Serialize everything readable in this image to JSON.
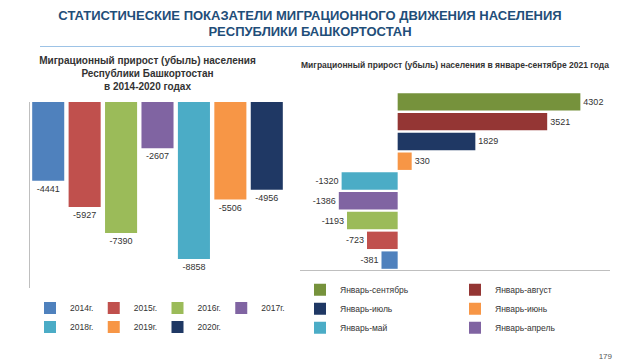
{
  "header": {
    "title": "СТАТИСТИЧЕСКИЕ ПОКАЗАТЕЛИ МИГРАЦИОННОГО ДВИЖЕНИЯ НАСЕЛЕНИЯ\nРЕСПУБЛИКИ БАШКОРТОСТАН",
    "page_number": 179
  },
  "chart_data": [
    {
      "type": "bar",
      "title": "Миграционный прирост (убыль) населения\nРеспублики Башкортостан\nв 2014-2020 годах",
      "categories": [
        "2014г.",
        "2015г.",
        "2016г.",
        "2017г.",
        "2018г.",
        "2019г.",
        "2020г."
      ],
      "values": [
        -4441,
        -5927,
        -7390,
        -2607,
        -8858,
        -5506,
        -4956
      ],
      "colors": [
        "#4f81bd",
        "#c0504d",
        "#9bbb59",
        "#8064a2",
        "#4bacc6",
        "#f79646",
        "#1f3864"
      ],
      "ylim": [
        -10500,
        0
      ],
      "grid": false,
      "legend": "bottom",
      "data_labels": true,
      "tick_labels": false
    },
    {
      "type": "bar",
      "title": "Миграционный прирост (убыль) населения в январе-сентябре 2021 года",
      "orientation": "horizontal",
      "categories": [
        "Январь-сентябрь",
        "Январь-август",
        "Январь-июль",
        "Январь-июнь",
        "Январь-май",
        "Январь-апрель",
        null,
        null,
        null
      ],
      "values": [
        4302,
        3521,
        1829,
        330,
        -1320,
        -1386,
        -1193,
        -723,
        -381
      ],
      "colors": [
        "#76923c",
        "#943634",
        "#1f3864",
        "#f79646",
        "#4bacc6",
        "#8064a2",
        "#9bbb59",
        "#c0504d",
        "#4f81bd"
      ],
      "xlim": [
        -2300,
        5000
      ],
      "grid": false,
      "legend": "bottom",
      "data_labels": true,
      "tick_labels": false
    }
  ]
}
